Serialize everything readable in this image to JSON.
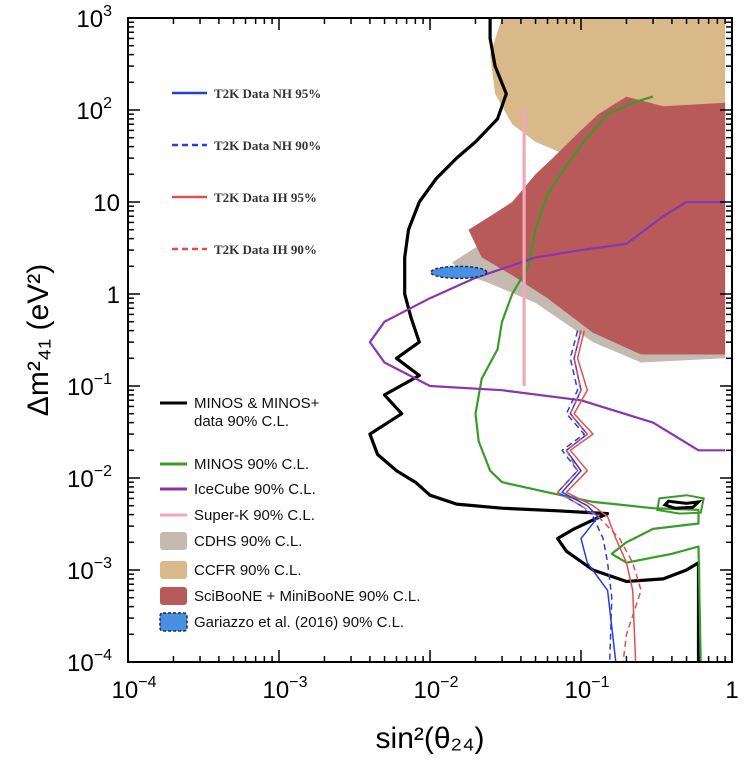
{
  "chart_data": {
    "type": "line",
    "title": "",
    "xlabel": "sin²(θ₂₄)",
    "ylabel": "Δm²₄₁ (eV²)",
    "xscale": "log",
    "yscale": "log",
    "xlim": [
      0.0001,
      1
    ],
    "ylim": [
      0.0001,
      1000
    ],
    "x_tick_labels": [
      {
        "value": 0.0001,
        "base": "10",
        "exp": "−4"
      },
      {
        "value": 0.001,
        "base": "10",
        "exp": "−3"
      },
      {
        "value": 0.01,
        "base": "10",
        "exp": "−2"
      },
      {
        "value": 0.1,
        "base": "10",
        "exp": "−1"
      },
      {
        "value": 1,
        "base": "1",
        "exp": ""
      }
    ],
    "y_tick_labels": [
      {
        "value": 0.0001,
        "base": "10",
        "exp": "−4"
      },
      {
        "value": 0.001,
        "base": "10",
        "exp": "−3"
      },
      {
        "value": 0.01,
        "base": "10",
        "exp": "−2"
      },
      {
        "value": 0.1,
        "base": "10",
        "exp": "−1"
      },
      {
        "value": 1,
        "base": "1",
        "exp": ""
      },
      {
        "value": 10,
        "base": "10",
        "exp": ""
      },
      {
        "value": 100,
        "base": "10",
        "exp": "2"
      },
      {
        "value": 1000,
        "base": "10",
        "exp": "3"
      }
    ],
    "regions": [
      {
        "name": "CCFR 90% C.L.",
        "color": "#d9b98a",
        "points": [
          [
            0.03,
            1000
          ],
          [
            0.9,
            1000
          ],
          [
            0.9,
            12
          ],
          [
            0.12,
            12
          ],
          [
            0.09,
            30
          ],
          [
            0.05,
            45
          ],
          [
            0.035,
            70
          ],
          [
            0.027,
            150
          ],
          [
            0.025,
            400
          ]
        ]
      },
      {
        "name": "CDHS 90% C.L.",
        "color": "#c4bab0",
        "points": [
          [
            0.014,
            2.2
          ],
          [
            0.02,
            3.2
          ],
          [
            0.028,
            4.5
          ],
          [
            0.05,
            8
          ],
          [
            0.1,
            11
          ],
          [
            0.9,
            10
          ],
          [
            0.9,
            0.2
          ],
          [
            0.25,
            0.18
          ],
          [
            0.12,
            0.3
          ],
          [
            0.05,
            0.8
          ],
          [
            0.025,
            1.3
          ],
          [
            0.016,
            1.7
          ]
        ]
      },
      {
        "name": "SciBooNE + MiniBooNE 90% C.L.",
        "color": "#b95a5a",
        "points": [
          [
            0.018,
            5
          ],
          [
            0.025,
            7
          ],
          [
            0.035,
            10
          ],
          [
            0.05,
            20
          ],
          [
            0.065,
            30
          ],
          [
            0.1,
            60
          ],
          [
            0.13,
            90
          ],
          [
            0.2,
            140
          ],
          [
            0.35,
            110
          ],
          [
            0.9,
            120
          ],
          [
            0.9,
            0.22
          ],
          [
            0.25,
            0.22
          ],
          [
            0.12,
            0.38
          ],
          [
            0.06,
            0.9
          ],
          [
            0.035,
            1.6
          ],
          [
            0.022,
            2.5
          ]
        ]
      }
    ],
    "series": [
      {
        "name": "MINOS & MINOS+ data 90% C.L.",
        "color": "#000000",
        "dash": "",
        "width": 3.2,
        "points": [
          [
            0.025,
            1000
          ],
          [
            0.025,
            600
          ],
          [
            0.027,
            300
          ],
          [
            0.032,
            150
          ],
          [
            0.028,
            80
          ],
          [
            0.02,
            45
          ],
          [
            0.015,
            30
          ],
          [
            0.011,
            18
          ],
          [
            0.0085,
            10
          ],
          [
            0.0072,
            5
          ],
          [
            0.0068,
            2.5
          ],
          [
            0.0068,
            1
          ],
          [
            0.0075,
            0.55
          ],
          [
            0.0085,
            0.3
          ],
          [
            0.006,
            0.2
          ],
          [
            0.0085,
            0.13
          ],
          [
            0.005,
            0.08
          ],
          [
            0.0065,
            0.05
          ],
          [
            0.004,
            0.03
          ],
          [
            0.0045,
            0.018
          ],
          [
            0.006,
            0.012
          ],
          [
            0.008,
            0.009
          ],
          [
            0.01,
            0.0065
          ],
          [
            0.015,
            0.0052
          ],
          [
            0.03,
            0.0047
          ],
          [
            0.07,
            0.0044
          ],
          [
            0.15,
            0.0041
          ],
          [
            0.12,
            0.0035
          ],
          [
            0.09,
            0.0028
          ],
          [
            0.07,
            0.0022
          ],
          [
            0.08,
            0.0016
          ],
          [
            0.12,
            0.001
          ],
          [
            0.2,
            0.00075
          ],
          [
            0.35,
            0.0008
          ],
          [
            0.5,
            0.001
          ],
          [
            0.6,
            0.0012
          ],
          [
            0.6,
            0.0001
          ]
        ]
      },
      {
        "name": "MINOS 90% C.L.",
        "color": "#3a9a2a",
        "dash": "",
        "width": 2.2,
        "points": [
          [
            0.3,
            140
          ],
          [
            0.22,
            120
          ],
          [
            0.15,
            90
          ],
          [
            0.11,
            50
          ],
          [
            0.08,
            25
          ],
          [
            0.06,
            12
          ],
          [
            0.05,
            5
          ],
          [
            0.045,
            2
          ],
          [
            0.035,
            1
          ],
          [
            0.03,
            0.5
          ],
          [
            0.028,
            0.25
          ],
          [
            0.022,
            0.12
          ],
          [
            0.02,
            0.05
          ],
          [
            0.021,
            0.025
          ],
          [
            0.025,
            0.012
          ],
          [
            0.03,
            0.009
          ],
          [
            0.06,
            0.007
          ],
          [
            0.12,
            0.0055
          ],
          [
            0.3,
            0.0047
          ],
          [
            0.6,
            0.0045
          ],
          [
            0.6,
            0.0032
          ],
          [
            0.3,
            0.0028
          ],
          [
            0.2,
            0.002
          ],
          [
            0.16,
            0.0015
          ],
          [
            0.2,
            0.0012
          ],
          [
            0.4,
            0.0015
          ],
          [
            0.6,
            0.0018
          ],
          [
            0.62,
            0.0001
          ]
        ]
      },
      {
        "name": "IceCube 90% C.L.",
        "color": "#8a35b0",
        "dash": "",
        "width": 2.2,
        "points": [
          [
            0.9,
            10
          ],
          [
            0.5,
            10
          ],
          [
            0.35,
            7
          ],
          [
            0.2,
            3.5
          ],
          [
            0.1,
            3
          ],
          [
            0.05,
            2.5
          ],
          [
            0.02,
            1.5
          ],
          [
            0.01,
            0.9
          ],
          [
            0.005,
            0.5
          ],
          [
            0.004,
            0.3
          ],
          [
            0.005,
            0.18
          ],
          [
            0.01,
            0.1
          ],
          [
            0.03,
            0.09
          ],
          [
            0.1,
            0.07
          ],
          [
            0.3,
            0.04
          ],
          [
            0.6,
            0.02
          ],
          [
            0.9,
            0.02
          ]
        ]
      },
      {
        "name": "Super-K 90% C.L.",
        "color": "#f2a7b8",
        "dash": "",
        "width": 3.2,
        "points": [
          [
            0.042,
            100
          ],
          [
            0.042,
            0.1
          ]
        ]
      },
      {
        "name": "T2K Data NH 95%",
        "color": "#2a3de0",
        "dash": "",
        "width": 1.5,
        "points": [
          [
            0.1,
            0.4
          ],
          [
            0.09,
            0.2
          ],
          [
            0.1,
            0.09
          ],
          [
            0.085,
            0.05
          ],
          [
            0.11,
            0.03
          ],
          [
            0.08,
            0.02
          ],
          [
            0.1,
            0.012
          ],
          [
            0.075,
            0.007
          ],
          [
            0.11,
            0.005
          ],
          [
            0.13,
            0.0038
          ],
          [
            0.1,
            0.0022
          ],
          [
            0.11,
            0.0012
          ],
          [
            0.15,
            0.0006
          ],
          [
            0.17,
            0.0001
          ]
        ]
      },
      {
        "name": "T2K Data NH 90%",
        "color": "#2a3de0",
        "dash": "6,4",
        "width": 1.5,
        "points": [
          [
            0.095,
            0.4
          ],
          [
            0.085,
            0.2
          ],
          [
            0.095,
            0.09
          ],
          [
            0.08,
            0.05
          ],
          [
            0.105,
            0.03
          ],
          [
            0.075,
            0.02
          ],
          [
            0.095,
            0.012
          ],
          [
            0.07,
            0.007
          ],
          [
            0.1,
            0.005
          ],
          [
            0.12,
            0.0038
          ],
          [
            0.14,
            0.0022
          ],
          [
            0.15,
            0.0012
          ],
          [
            0.16,
            0.0005
          ],
          [
            0.155,
            0.0001
          ]
        ]
      },
      {
        "name": "T2K Data IH 95%",
        "color": "#e05050",
        "dash": "",
        "width": 1.5,
        "points": [
          [
            0.105,
            0.4
          ],
          [
            0.095,
            0.2
          ],
          [
            0.11,
            0.09
          ],
          [
            0.09,
            0.05
          ],
          [
            0.12,
            0.03
          ],
          [
            0.085,
            0.02
          ],
          [
            0.11,
            0.012
          ],
          [
            0.08,
            0.007
          ],
          [
            0.12,
            0.005
          ],
          [
            0.15,
            0.0038
          ],
          [
            0.17,
            0.0022
          ],
          [
            0.2,
            0.0012
          ],
          [
            0.22,
            0.0006
          ],
          [
            0.23,
            0.0001
          ]
        ]
      },
      {
        "name": "T2K Data IH 90%",
        "color": "#e05050",
        "dash": "6,4",
        "width": 1.5,
        "points": [
          [
            0.1,
            0.4
          ],
          [
            0.09,
            0.2
          ],
          [
            0.1,
            0.09
          ],
          [
            0.085,
            0.05
          ],
          [
            0.11,
            0.03
          ],
          [
            0.08,
            0.02
          ],
          [
            0.095,
            0.012
          ],
          [
            0.07,
            0.007
          ],
          [
            0.1,
            0.005
          ],
          [
            0.13,
            0.0038
          ],
          [
            0.18,
            0.0022
          ],
          [
            0.22,
            0.0012
          ],
          [
            0.25,
            0.0006
          ],
          [
            0.2,
            0.0002
          ],
          [
            0.19,
            0.0001
          ]
        ]
      }
    ],
    "closed_curves": [
      {
        "name": "MINOS & MINOS+ island",
        "color": "#000000",
        "width": 3,
        "points": [
          [
            0.38,
            0.0056
          ],
          [
            0.5,
            0.0053
          ],
          [
            0.6,
            0.0055
          ],
          [
            0.55,
            0.0048
          ],
          [
            0.42,
            0.0047
          ],
          [
            0.36,
            0.0051
          ]
        ]
      },
      {
        "name": "MINOS island",
        "color": "#3a9a2a",
        "width": 2,
        "points": [
          [
            0.33,
            0.006
          ],
          [
            0.5,
            0.0065
          ],
          [
            0.65,
            0.006
          ],
          [
            0.62,
            0.0042
          ],
          [
            0.45,
            0.0041
          ],
          [
            0.32,
            0.0045
          ]
        ]
      }
    ],
    "gariazzo_ellipse": {
      "name": "Gariazzo et al. (2016) 90% C.L.",
      "center": [
        0.0155,
        1.72
      ],
      "color": "#4a90e2"
    },
    "legend_t2k": [
      {
        "label": "T2K Data NH 95%",
        "color": "#2a3de0",
        "dash": ""
      },
      {
        "label": "T2K Data NH 90%",
        "color": "#2a3de0",
        "dash": "6,4"
      },
      {
        "label": "T2K Data IH 95%",
        "color": "#e05050",
        "dash": ""
      },
      {
        "label": "T2K Data IH 90%",
        "color": "#e05050",
        "dash": "6,4"
      }
    ],
    "legend_main": [
      {
        "kind": "line",
        "lines": [
          "MINOS & MINOS+",
          "data 90% C.L."
        ],
        "color": "#000000"
      },
      {
        "kind": "line",
        "lines": [
          "MINOS 90% C.L."
        ],
        "color": "#3a9a2a"
      },
      {
        "kind": "line",
        "lines": [
          "IceCube 90% C.L."
        ],
        "color": "#8a35b0"
      },
      {
        "kind": "line",
        "lines": [
          "Super-K 90% C.L."
        ],
        "color": "#f2a7b8"
      },
      {
        "kind": "box",
        "lines": [
          "CDHS 90% C.L."
        ],
        "color": "#c4bab0"
      },
      {
        "kind": "box",
        "lines": [
          "CCFR 90% C.L."
        ],
        "color": "#d9b98a"
      },
      {
        "kind": "box",
        "lines": [
          "SciBooNE + MiniBooNE 90% C.L."
        ],
        "color": "#b95a5a"
      },
      {
        "kind": "dashbox",
        "lines": [
          "Gariazzo et al. (2016) 90% C.L."
        ],
        "color": "#4a90e2"
      }
    ]
  }
}
